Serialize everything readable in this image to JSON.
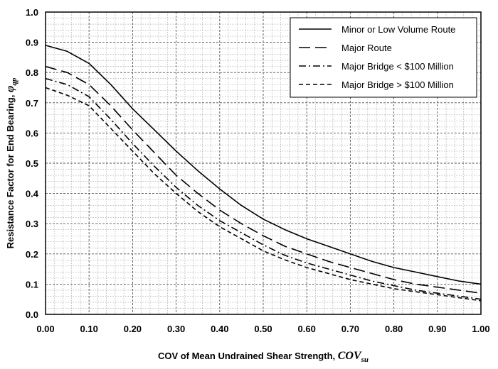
{
  "chart_data": {
    "type": "line",
    "xlabel": "COV of Mean Undrained Shear Strength, ",
    "xlabel_symbol": "COV",
    "xlabel_subscript": "su",
    "ylabel": "Resistance Factor for End Bearing, ",
    "ylabel_symbol": "φ",
    "ylabel_subscript": "qp",
    "xlim": [
      0,
      1
    ],
    "ylim": [
      0,
      1
    ],
    "x_ticks": [
      "0.00",
      "0.10",
      "0.20",
      "0.30",
      "0.40",
      "0.50",
      "0.60",
      "0.70",
      "0.80",
      "0.90",
      "1.00"
    ],
    "y_ticks": [
      "0.0",
      "0.1",
      "0.2",
      "0.3",
      "0.4",
      "0.5",
      "0.6",
      "0.7",
      "0.8",
      "0.9",
      "1.0"
    ],
    "grid": true,
    "legend_position": "top-right",
    "x": [
      0.0,
      0.05,
      0.1,
      0.15,
      0.2,
      0.25,
      0.3,
      0.35,
      0.4,
      0.45,
      0.5,
      0.55,
      0.6,
      0.65,
      0.7,
      0.75,
      0.8,
      0.85,
      0.9,
      0.95,
      1.0
    ],
    "series": [
      {
        "name": "Minor or Low Volume Route",
        "dash": "solid",
        "values": [
          0.89,
          0.87,
          0.83,
          0.76,
          0.68,
          0.61,
          0.54,
          0.475,
          0.415,
          0.36,
          0.315,
          0.28,
          0.25,
          0.225,
          0.2,
          0.175,
          0.155,
          0.14,
          0.125,
          0.11,
          0.1
        ]
      },
      {
        "name": "Major Route",
        "dash": "long-dash",
        "values": [
          0.82,
          0.8,
          0.76,
          0.69,
          0.61,
          0.535,
          0.46,
          0.4,
          0.345,
          0.3,
          0.26,
          0.225,
          0.2,
          0.175,
          0.155,
          0.135,
          0.115,
          0.1,
          0.09,
          0.08,
          0.07
        ]
      },
      {
        "name": "Major Bridge < $100 Million",
        "dash": "dash-dot",
        "values": [
          0.78,
          0.76,
          0.72,
          0.645,
          0.565,
          0.49,
          0.42,
          0.36,
          0.31,
          0.27,
          0.23,
          0.195,
          0.17,
          0.15,
          0.13,
          0.11,
          0.095,
          0.08,
          0.07,
          0.06,
          0.05
        ]
      },
      {
        "name": "Major Bridge > $100 Million",
        "dash": "short-dash",
        "values": [
          0.75,
          0.725,
          0.69,
          0.615,
          0.54,
          0.465,
          0.4,
          0.34,
          0.29,
          0.25,
          0.21,
          0.18,
          0.155,
          0.135,
          0.115,
          0.1,
          0.085,
          0.075,
          0.065,
          0.055,
          0.045
        ]
      }
    ]
  }
}
